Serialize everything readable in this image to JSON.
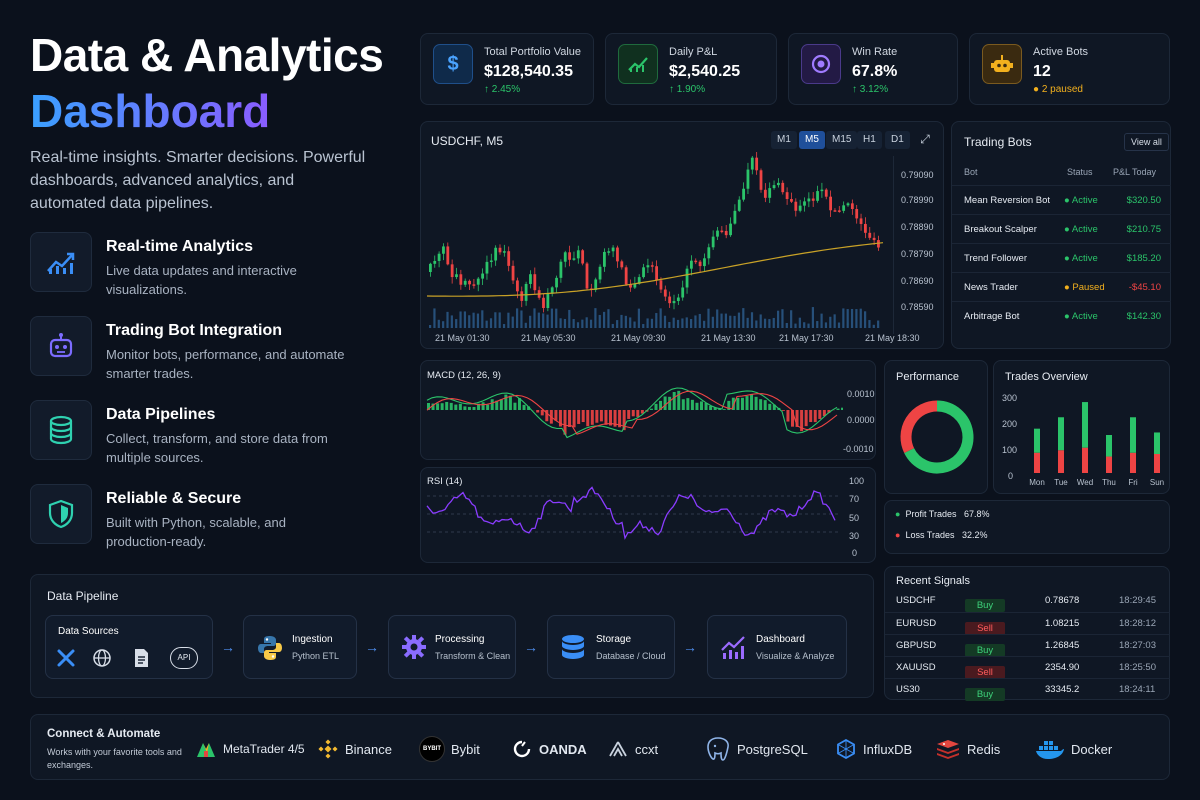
{
  "hero": {
    "title_line1": "Data & Analytics",
    "title_line2": "Dashboard",
    "subtitle": "Real-time insights. Smarter decisions. Powerful dashboards, advanced analytics, and automated data pipelines."
  },
  "features": [
    {
      "title": "Real-time Analytics",
      "desc": "Live data updates and interactive visualizations.",
      "icon": "chart-line-icon"
    },
    {
      "title": "Trading Bot Integration",
      "desc": "Monitor bots, performance, and automate smarter trades.",
      "icon": "robot-icon"
    },
    {
      "title": "Data Pipelines",
      "desc": "Collect, transform, and store data from multiple sources.",
      "icon": "database-icon"
    },
    {
      "title": "Reliable & Secure",
      "desc": "Built with Python, scalable, and production-ready.",
      "icon": "shield-icon"
    }
  ],
  "kpis": [
    {
      "label": "Total Portfolio Value",
      "value": "$128,540.35",
      "change": "↑ 2.45%",
      "icon": "dollar-icon",
      "color": "#2f7fe0"
    },
    {
      "label": "Daily P&L",
      "value": "$2,540.25",
      "change": "↑ 1.90%",
      "icon": "trend-up-icon",
      "color": "#2bc46a"
    },
    {
      "label": "Win Rate",
      "value": "67.8%",
      "change": "↑ 3.12%",
      "icon": "target-icon",
      "color": "#9b6bff"
    },
    {
      "label": "Active Bots",
      "value": "12",
      "change": "● 2 paused",
      "icon": "robot-icon",
      "color": "#f2b01e"
    }
  ],
  "price_chart": {
    "symbol": "USDCHF, M5",
    "timeframes": [
      "M1",
      "M5",
      "M15",
      "H1",
      "D1"
    ],
    "active_timeframe": "M5",
    "y_ticks": [
      "0.79090",
      "0.78990",
      "0.78890",
      "0.78790",
      "0.78690",
      "0.78590"
    ],
    "x_ticks": [
      "21 May 01:30",
      "21 May 05:30",
      "21 May 09:30",
      "21 May 13:30",
      "21 May 17:30",
      "21 May 18:30"
    ],
    "up_color": "#2bc46a",
    "down_color": "#ee4444"
  },
  "macd": {
    "title": "MACD (12, 26, 9)",
    "y_ticks": [
      "0.0010",
      "0.0000",
      "-0.0010"
    ]
  },
  "rsi": {
    "title": "RSI (14)",
    "y_ticks": [
      "100",
      "70",
      "50",
      "30",
      "0"
    ]
  },
  "bots": {
    "title": "Trading Bots",
    "view_all": "View all",
    "headers": [
      "Bot",
      "Status",
      "P&L Today"
    ],
    "rows": [
      {
        "name": "Mean Reversion Bot",
        "status": "Active",
        "pnl": "$320.50"
      },
      {
        "name": "Breakout Scalper",
        "status": "Active",
        "pnl": "$210.75"
      },
      {
        "name": "Trend Follower",
        "status": "Active",
        "pnl": "$185.20"
      },
      {
        "name": "News Trader",
        "status": "Paused",
        "pnl": "-$45.10"
      },
      {
        "name": "Arbitrage Bot",
        "status": "Active",
        "pnl": "$142.30"
      }
    ]
  },
  "performance": {
    "title": "Performance",
    "profit_label": "Profit Trades",
    "profit_value": "67.8%",
    "loss_label": "Loss Trades",
    "loss_value": "32.2%"
  },
  "chart_data": [
    {
      "type": "pie",
      "title": "Performance",
      "labels": [
        "Profit Trades",
        "Loss Trades"
      ],
      "values": [
        67.8,
        32.2
      ],
      "colors": [
        "#2bc46a",
        "#ee4444"
      ]
    },
    {
      "type": "bar",
      "title": "Trades Overview",
      "categories": [
        "Mon",
        "Tue",
        "Wed",
        "Thu",
        "Fri",
        "Sun"
      ],
      "y_ticks": [
        "300",
        "200",
        "100",
        "0"
      ],
      "ylim": [
        0,
        300
      ],
      "series": [
        {
          "values": [
            80,
            90,
            100,
            65,
            80,
            75
          ],
          "color": "#ee4444"
        },
        {
          "values": [
            95,
            130,
            180,
            85,
            140,
            85
          ],
          "color": "#2bc46a"
        }
      ]
    }
  ],
  "signals": {
    "title": "Recent Signals",
    "rows": [
      {
        "symbol": "USDCHF",
        "side": "Buy",
        "price": "0.78678",
        "time": "18:29:45"
      },
      {
        "symbol": "EURUSD",
        "side": "Sell",
        "price": "1.08215",
        "time": "18:28:12"
      },
      {
        "symbol": "GBPUSD",
        "side": "Buy",
        "price": "1.26845",
        "time": "18:27:03"
      },
      {
        "symbol": "XAUUSD",
        "side": "Sell",
        "price": "2354.90",
        "time": "18:25:50"
      },
      {
        "symbol": "US30",
        "side": "Buy",
        "price": "33345.2",
        "time": "18:24:11"
      }
    ]
  },
  "pipeline": {
    "title": "Data Pipeline",
    "sources_title": "Data Sources",
    "sources_api": "API",
    "stages": [
      {
        "title": "Ingestion",
        "sub": "Python ETL",
        "icon": "python-icon"
      },
      {
        "title": "Processing",
        "sub": "Transform & Clean",
        "icon": "gear-icon"
      },
      {
        "title": "Storage",
        "sub": "Database / Cloud",
        "icon": "database-icon"
      },
      {
        "title": "Dashboard",
        "sub": "Visualize & Analyze",
        "icon": "chart-icon"
      }
    ]
  },
  "connect": {
    "title": "Connect & Automate",
    "subtitle": "Works with your favorite tools and exchanges.",
    "tools": [
      {
        "name": "MetaTrader 4/5",
        "icon": "metatrader-icon"
      },
      {
        "name": "Binance",
        "icon": "binance-icon"
      },
      {
        "name": "Bybit",
        "icon": "bybit-icon"
      },
      {
        "name": "OANDA",
        "icon": "oanda-icon"
      },
      {
        "name": "ccxt",
        "icon": "ccxt-icon"
      },
      {
        "name": "PostgreSQL",
        "icon": "postgresql-icon"
      },
      {
        "name": "InfluxDB",
        "icon": "influxdb-icon"
      },
      {
        "name": "Redis",
        "icon": "redis-icon"
      },
      {
        "name": "Docker",
        "icon": "docker-icon"
      }
    ]
  }
}
